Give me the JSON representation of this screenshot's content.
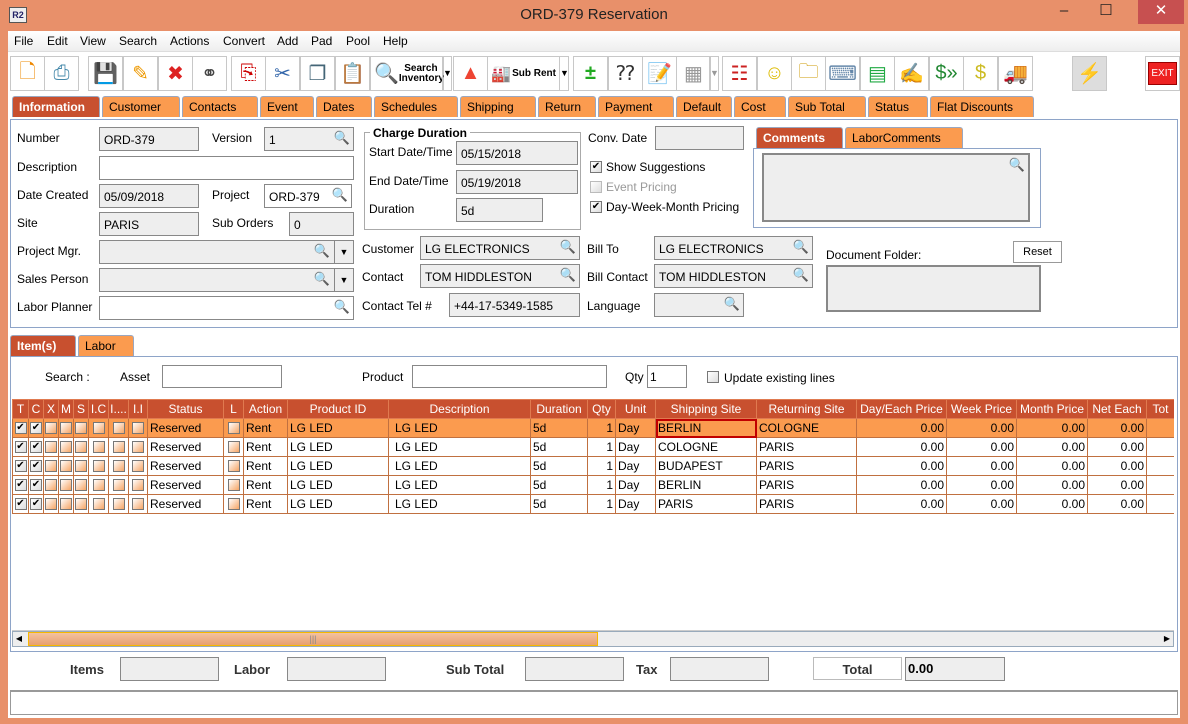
{
  "window": {
    "title": "ORD-379 Reservation",
    "logo": "R2",
    "minimize": "–",
    "maximize": "☐",
    "close": "✕"
  },
  "menu": [
    "File",
    "Edit",
    "View",
    "Search",
    "Actions",
    "Convert",
    "Add",
    "Pad",
    "Pool",
    "Help"
  ],
  "toolbar": {
    "search_inventory": "Search Inventory",
    "sub_rent": "Sub Rent",
    "exit": "EXIT",
    "icons": [
      "new-document-icon",
      "print-icon",
      "save-icon",
      "edit-pencil-icon",
      "delete-icon",
      "binoculars-icon",
      "copy-document-icon",
      "cut-icon",
      "copy-icon",
      "paste-icon",
      "search-inventory-icon",
      "shapes-icon",
      "sub-rent-icon",
      "add-remove-icon",
      "balls-question-icon",
      "notepad-edit-icon",
      "calendar-icon",
      "hierarchy-icon",
      "smiley-icon",
      "folder-clock-icon",
      "key-icon",
      "stacked-barrels-icon",
      "form-edit-icon",
      "money-forward-icon",
      "money-note-icon",
      "truck-icon",
      "lightning-icon",
      "exit-icon"
    ]
  },
  "tabs": [
    "Information",
    "Customer",
    "Contacts",
    "Event",
    "Dates",
    "Schedules",
    "Shipping",
    "Return",
    "Payment",
    "Default",
    "Cost",
    "Sub Total",
    "Status",
    "Flat Discounts"
  ],
  "info": {
    "number_label": "Number",
    "number": "ORD-379",
    "version_label": "Version",
    "version": "1",
    "description_label": "Description",
    "description": "",
    "date_created_label": "Date Created",
    "date_created": "05/09/2018",
    "project_label": "Project",
    "project": "ORD-379",
    "site_label": "Site",
    "site": "PARIS",
    "sub_orders_label": "Sub Orders",
    "sub_orders": "0",
    "project_mgr_label": "Project Mgr.",
    "project_mgr": "",
    "sales_person_label": "Sales Person",
    "sales_person": "",
    "labor_planner_label": "Labor Planner",
    "labor_planner": "",
    "charge_duration_title": "Charge Duration",
    "start_label": "Start Date/Time",
    "start": "05/15/2018",
    "end_label": "End Date/Time",
    "end": "05/19/2018",
    "duration_label": "Duration",
    "duration": "5d",
    "conv_date_label": "Conv. Date",
    "conv_date": "",
    "show_suggestions": "Show Suggestions",
    "event_pricing": "Event Pricing",
    "dwm_pricing": "Day-Week-Month Pricing",
    "customer_label": "Customer",
    "customer": "LG ELECTRONICS",
    "contact_label": "Contact",
    "contact": "TOM HIDDLESTON",
    "contact_tel_label": "Contact Tel #",
    "contact_tel": "+44-17-5349-1585",
    "bill_to_label": "Bill To",
    "bill_to": "LG ELECTRONICS",
    "bill_contact_label": "Bill Contact",
    "bill_contact": "TOM HIDDLESTON",
    "language_label": "Language",
    "language": "",
    "comments_tabs": [
      "Comments",
      "LaborComments"
    ],
    "document_folder_label": "Document Folder:",
    "reset": "Reset"
  },
  "lower_tabs": [
    "Item(s)",
    "Labor"
  ],
  "search": {
    "label": "Search :",
    "asset_label": "Asset",
    "asset": "",
    "product_label": "Product",
    "product": "",
    "qty_label": "Qty",
    "qty": "1",
    "update_label": "Update existing lines"
  },
  "table": {
    "headers": [
      "T",
      "C",
      "X",
      "M",
      "S",
      "I.C",
      "I....",
      "I.I",
      "Status",
      "L",
      "Action",
      "Product ID",
      "Description",
      "Duration",
      "Qty",
      "Unit",
      "Shipping Site",
      "Returning Site",
      "Day/Each Price",
      "Week Price",
      "Month Price",
      "Net Each",
      "Tot"
    ],
    "rows": [
      {
        "t": true,
        "c": true,
        "status": "Reserved",
        "action": "Rent",
        "product_id": "LG LED",
        "description": "LG LED",
        "duration": "5d",
        "qty": "1",
        "unit": "Day",
        "shipping": "BERLIN",
        "returning": "COLOGNE",
        "day": "0.00",
        "week": "0.00",
        "month": "0.00",
        "net": "0.00"
      },
      {
        "t": true,
        "c": true,
        "status": "Reserved",
        "action": "Rent",
        "product_id": "LG LED",
        "description": "LG LED",
        "duration": "5d",
        "qty": "1",
        "unit": "Day",
        "shipping": "COLOGNE",
        "returning": "PARIS",
        "day": "0.00",
        "week": "0.00",
        "month": "0.00",
        "net": "0.00"
      },
      {
        "t": true,
        "c": true,
        "status": "Reserved",
        "action": "Rent",
        "product_id": "LG LED",
        "description": "LG LED",
        "duration": "5d",
        "qty": "1",
        "unit": "Day",
        "shipping": "BUDAPEST",
        "returning": "PARIS",
        "day": "0.00",
        "week": "0.00",
        "month": "0.00",
        "net": "0.00"
      },
      {
        "t": true,
        "c": true,
        "status": "Reserved",
        "action": "Rent",
        "product_id": "LG LED",
        "description": "LG LED",
        "duration": "5d",
        "qty": "1",
        "unit": "Day",
        "shipping": "BERLIN",
        "returning": "PARIS",
        "day": "0.00",
        "week": "0.00",
        "month": "0.00",
        "net": "0.00"
      },
      {
        "t": true,
        "c": true,
        "status": "Reserved",
        "action": "Rent",
        "product_id": "LG LED",
        "description": "LG LED",
        "duration": "5d",
        "qty": "1",
        "unit": "Day",
        "shipping": "PARIS",
        "returning": "PARIS",
        "day": "0.00",
        "week": "0.00",
        "month": "0.00",
        "net": "0.00"
      }
    ]
  },
  "footer": {
    "items_label": "Items",
    "items": "",
    "labor_label": "Labor",
    "labor": "",
    "subtotal_label": "Sub Total",
    "subtotal": "",
    "tax_label": "Tax",
    "tax": "",
    "total_label": "Total",
    "total": "0.00"
  },
  "colors": {
    "frame": "#E8906A",
    "tab": "#FB9B4F",
    "active_tab": "#C8502F",
    "selected_row": "#FB9B4F"
  }
}
